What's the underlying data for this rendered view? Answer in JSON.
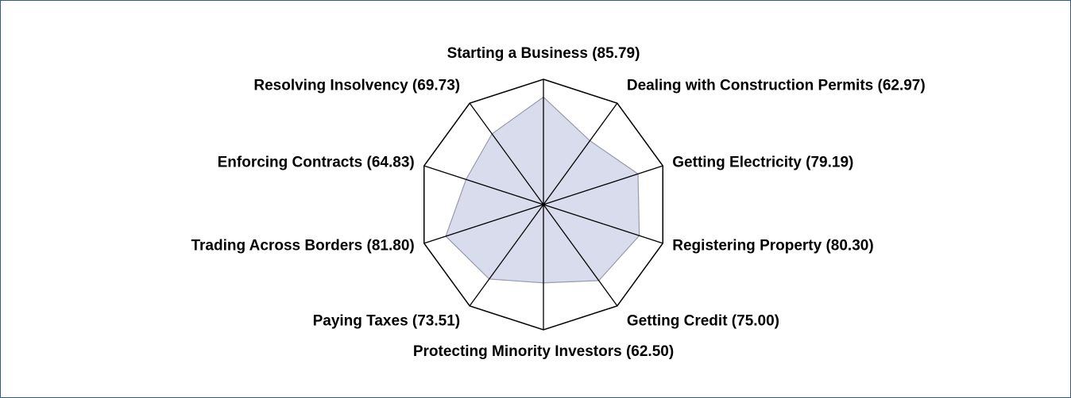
{
  "chart_data": {
    "type": "radar",
    "categories": [
      "Starting a Business (85.79)",
      "Dealing with Construction Permits (62.97)",
      "Getting Electricity (79.19)",
      "Registering Property (80.30)",
      "Getting Credit (75.00)",
      "Protecting Minority Investors (62.50)",
      "Paying Taxes (73.51)",
      "Trading Across Borders (81.80)",
      "Enforcing Contracts (64.83)",
      "Resolving Insolvency (69.73)"
    ],
    "values": [
      85.79,
      62.97,
      79.19,
      80.3,
      75.0,
      62.5,
      73.51,
      81.8,
      64.83,
      69.73
    ],
    "ylim": [
      0,
      100
    ],
    "color": "#d9dcec"
  }
}
